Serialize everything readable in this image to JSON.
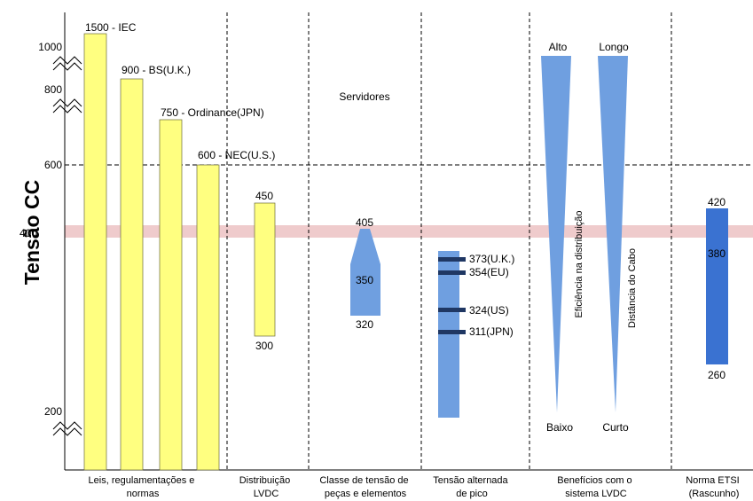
{
  "y_axis": {
    "title": "Tensão CC",
    "ticks": [
      "1000",
      "800",
      "600",
      "400",
      "200"
    ]
  },
  "columns": [
    "Leis, regulamentações e normas",
    "Distribuição LVDC",
    "Classe de tensão de peças e elementos",
    "Tensão alternada de pico",
    "Benefícios com o sistema LVDC",
    "Norma ETSI (Rascunho)"
  ],
  "laws": {
    "bars": [
      {
        "label": "1500 - IEC",
        "value": 1500
      },
      {
        "label": "900 - BS(U.K.)",
        "value": 900
      },
      {
        "label": "750 - Ordinance(JPN)",
        "value": 750
      },
      {
        "label": "600 - NEC(U.S.)",
        "value": 600
      }
    ],
    "color": "#ffff80"
  },
  "lvdc": {
    "top": "450",
    "bottom": "300"
  },
  "servers": {
    "label": "Servidores",
    "top": "405",
    "mid": "350",
    "bottom": "320"
  },
  "ac_peak": {
    "marks": [
      "373(U.K.)",
      "354(EU)",
      "324(US)",
      "311(JPN)"
    ]
  },
  "benefits": {
    "efficiency": {
      "title": "Eficiência na distribuição",
      "top": "Alto",
      "bottom": "Baixo"
    },
    "cable": {
      "title": "Distância do Cabo",
      "top": "Longo",
      "bottom": "Curto"
    }
  },
  "etsi": {
    "top": "420",
    "mid": "380",
    "bottom": "260"
  },
  "colors": {
    "yellow": "#ffff80",
    "light_blue": "#6f9fe0",
    "dark_blue": "#3a72d1",
    "mark": "#1f3763",
    "highlight": "#eab9bb"
  }
}
